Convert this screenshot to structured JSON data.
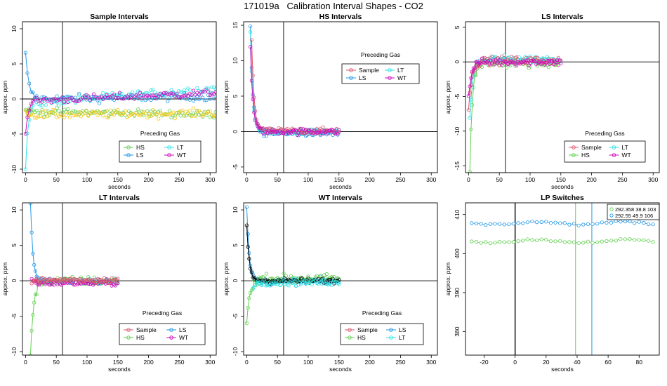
{
  "figure": {
    "title": "171019a   Calibration Interval Shapes - CO2"
  },
  "colors": {
    "Sample": "#DF536B",
    "HS": "#61D04F",
    "LS": "#2297E6",
    "LT": "#28E2E5",
    "WT": "#CD0BBC",
    "self": "#F5C710",
    "black": "#000000",
    "lp_green": "#61D04F",
    "lp_blue": "#2297E6"
  },
  "chart_data": [
    {
      "id": "sample",
      "type": "scatter",
      "title": "Sample Intervals",
      "xlabel": "seconds",
      "ylabel": "approx. ppm",
      "xlim": [
        -5,
        310
      ],
      "ylim": [
        -10.5,
        11
      ],
      "xticks": [
        0,
        50,
        100,
        150,
        200,
        250,
        300
      ],
      "yticks": [
        -10,
        -5,
        0,
        5,
        10
      ],
      "hline": 0,
      "vline": 60,
      "legend": {
        "title": "Preceding Gas",
        "position": "bottom-center",
        "entries": [
          "HS",
          "LT",
          "LS",
          "WT"
        ],
        "ncol": 2
      }
    },
    {
      "id": "hs",
      "type": "scatter",
      "title": "HS Intervals",
      "xlabel": "seconds",
      "ylabel": "approx. ppm",
      "xlim": [
        -5,
        310
      ],
      "ylim": [
        -5.8,
        15.5
      ],
      "xticks": [
        0,
        50,
        100,
        150,
        200,
        250,
        300
      ],
      "yticks": [
        -5,
        0,
        5,
        10,
        15
      ],
      "hline": 0,
      "vline": 60,
      "legend": {
        "title": "Preceding Gas",
        "position": "top-center",
        "entries": [
          "Sample",
          "LT",
          "LS",
          "WT"
        ],
        "ncol": 2
      }
    },
    {
      "id": "ls",
      "type": "scatter",
      "title": "LS Intervals",
      "xlabel": "seconds",
      "ylabel": "approx. ppm",
      "xlim": [
        -5,
        310
      ],
      "ylim": [
        -16,
        5.8
      ],
      "xticks": [
        0,
        50,
        100,
        150,
        200,
        250,
        300
      ],
      "yticks": [
        -15,
        -10,
        -5,
        0,
        5
      ],
      "hline": 0,
      "vline": 60,
      "legend": {
        "title": "Preceding Gas",
        "position": "bottom-center",
        "entries": [
          "Sample",
          "LT",
          "HS",
          "WT"
        ],
        "ncol": 2
      }
    },
    {
      "id": "lt",
      "type": "scatter",
      "title": "LT Intervals",
      "xlabel": "seconds",
      "ylabel": "approx. ppm",
      "xlim": [
        -5,
        310
      ],
      "ylim": [
        -10.5,
        11
      ],
      "xticks": [
        0,
        50,
        100,
        150,
        200,
        250,
        300
      ],
      "yticks": [
        -10,
        -5,
        0,
        5,
        10
      ],
      "hline": 0,
      "vline": 60,
      "legend": {
        "title": "Preceding Gas",
        "position": "bottom-center",
        "entries": [
          "Sample",
          "LS",
          "HS",
          "WT"
        ],
        "ncol": 2
      }
    },
    {
      "id": "wt",
      "type": "scatter",
      "title": "WT Intervals",
      "xlabel": "seconds",
      "ylabel": "approx. ppm",
      "xlim": [
        -5,
        310
      ],
      "ylim": [
        -10.5,
        11
      ],
      "xticks": [
        0,
        50,
        100,
        150,
        200,
        250,
        300
      ],
      "yticks": [
        -10,
        -5,
        0,
        5,
        10
      ],
      "hline": 0,
      "vline": 60,
      "legend": {
        "title": "Preceding Gas",
        "position": "bottom-center",
        "entries": [
          "Sample",
          "LS",
          "HS",
          "LT"
        ],
        "ncol": 2
      }
    },
    {
      "id": "lp",
      "type": "scatter",
      "title": "LP Switches",
      "xlabel": "seconds",
      "ylabel": "approx. ppm",
      "xlim": [
        -32,
        93
      ],
      "ylim": [
        374,
        413
      ],
      "xticks": [
        -20,
        0,
        20,
        40,
        60,
        80
      ],
      "yticks": [
        380,
        390,
        400,
        410
      ],
      "vline_black": 0,
      "vlines": [
        {
          "x": 39,
          "color": "lp_green"
        },
        {
          "x": 49.5,
          "color": "lp_blue"
        }
      ],
      "series": [
        {
          "name": "292.358 38.8 103",
          "color": "lp_green",
          "level": 403.2
        },
        {
          "name": "292.55 49.9 106",
          "color": "lp_blue",
          "level": 407.8
        }
      ],
      "legend": {
        "position": "top-right",
        "entries": [
          "292.358 38.8 103",
          "292.55 49.9 106"
        ]
      }
    }
  ]
}
